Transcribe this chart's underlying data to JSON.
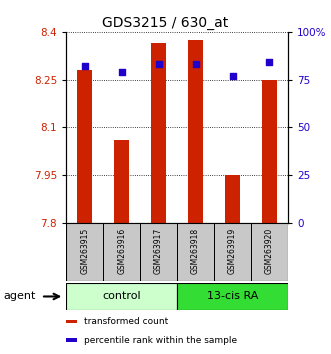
{
  "title": "GDS3215 / 630_at",
  "samples": [
    "GSM263915",
    "GSM263916",
    "GSM263917",
    "GSM263918",
    "GSM263919",
    "GSM263920"
  ],
  "bar_values": [
    8.28,
    8.06,
    8.365,
    8.375,
    7.951,
    8.248
  ],
  "bar_base": 7.8,
  "dot_values": [
    82,
    79,
    83,
    83,
    77,
    84
  ],
  "ylim_left": [
    7.8,
    8.4
  ],
  "ylim_right": [
    0,
    100
  ],
  "yticks_left": [
    7.8,
    7.95,
    8.1,
    8.25,
    8.4
  ],
  "yticks_right": [
    0,
    25,
    50,
    75,
    100
  ],
  "ytick_labels_right": [
    "0",
    "25",
    "50",
    "75",
    "100%"
  ],
  "bar_color": "#cc2200",
  "dot_color": "#2200cc",
  "group_labels": [
    "control",
    "13-cis RA"
  ],
  "group_colors": [
    "#ccffcc",
    "#33dd33"
  ],
  "group_ranges": [
    [
      0,
      3
    ],
    [
      3,
      6
    ]
  ],
  "agent_label": "agent",
  "legend_items": [
    "transformed count",
    "percentile rank within the sample"
  ],
  "legend_colors": [
    "#cc2200",
    "#2200cc"
  ],
  "tick_label_color_left": "#cc2200",
  "tick_label_color_right": "#2200cc",
  "bar_width": 0.4
}
